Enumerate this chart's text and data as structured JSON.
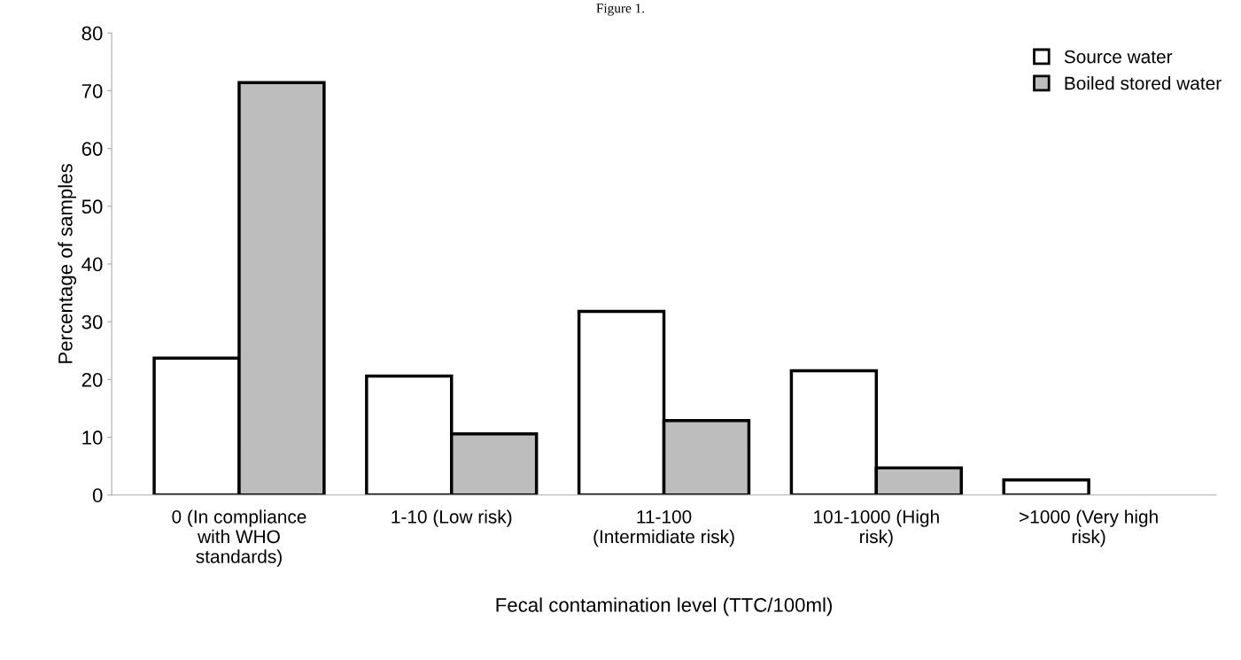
{
  "chart_data": {
    "type": "bar",
    "title": "Figure 1.",
    "xlabel": "Fecal contamination level (TTC/100ml)",
    "ylabel": "Percentage of samples",
    "categories": [
      "0 (In compliance\nwith WHO\nstandards)",
      "1-10 (Low risk)",
      "11-100\n(Intermidiate risk)",
      "101-1000 (High\nrisk)",
      ">1000 (Very high\nrisk)"
    ],
    "series": [
      {
        "name": "Source water",
        "color": "#ffffff",
        "values": [
          23.7,
          20.6,
          31.8,
          21.5,
          2.6
        ]
      },
      {
        "name": "Boiled stored water",
        "color": "#bdbdbd",
        "values": [
          71.4,
          10.6,
          12.9,
          4.7,
          null
        ]
      }
    ],
    "ylim": [
      0,
      80
    ],
    "yticks": [
      0,
      10,
      20,
      30,
      40,
      50,
      60,
      70,
      80
    ],
    "grid": false,
    "legend": "top right"
  }
}
